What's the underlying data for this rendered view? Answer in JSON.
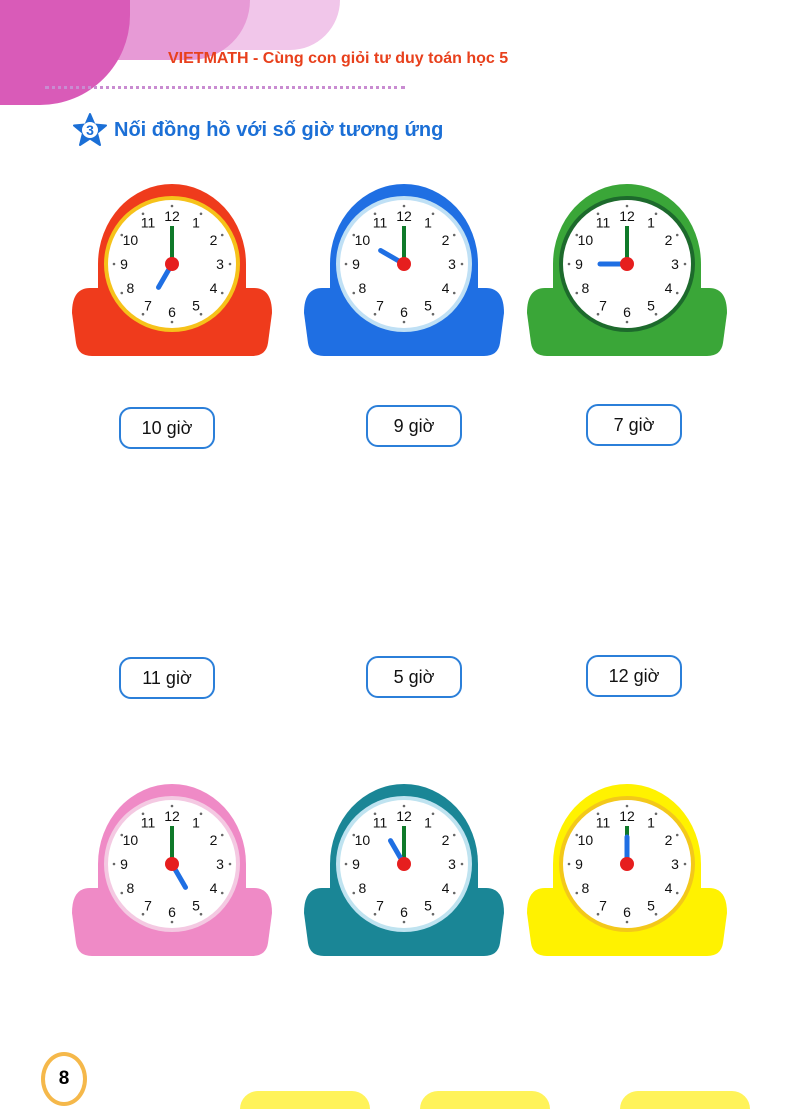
{
  "header": {
    "title": "VIETMATH - Cùng con giỏi tư duy toán học 5"
  },
  "task": {
    "number": "3",
    "title": "Nối đồng hồ với số giờ tương ứng"
  },
  "clocks": [
    {
      "color": "#ef3b1c",
      "rim": "#f6c21a",
      "hour": 7
    },
    {
      "color": "#1f6fe3",
      "rim": "#bfe0f5",
      "hour": 10
    },
    {
      "color": "#3aa638",
      "rim": "#1d6a2c",
      "hour": 9
    },
    {
      "color": "#ef8ac6",
      "rim": "#f4c9e2",
      "hour": 5
    },
    {
      "color": "#1a8696",
      "rim": "#bfe3f0",
      "hour": 11
    },
    {
      "color": "#fff200",
      "rim": "#f3c81a",
      "hour": 12
    }
  ],
  "labels": [
    "10 giờ",
    "9 giờ",
    "7 giờ",
    "11 giờ",
    "5 giờ",
    "12 giờ"
  ],
  "page_number": "8",
  "colors": {
    "minute_hand": "#0f7a2a",
    "hour_hand": "#1f6fe3",
    "center": "#e61e1e",
    "label_border": "#2b7fd9"
  }
}
